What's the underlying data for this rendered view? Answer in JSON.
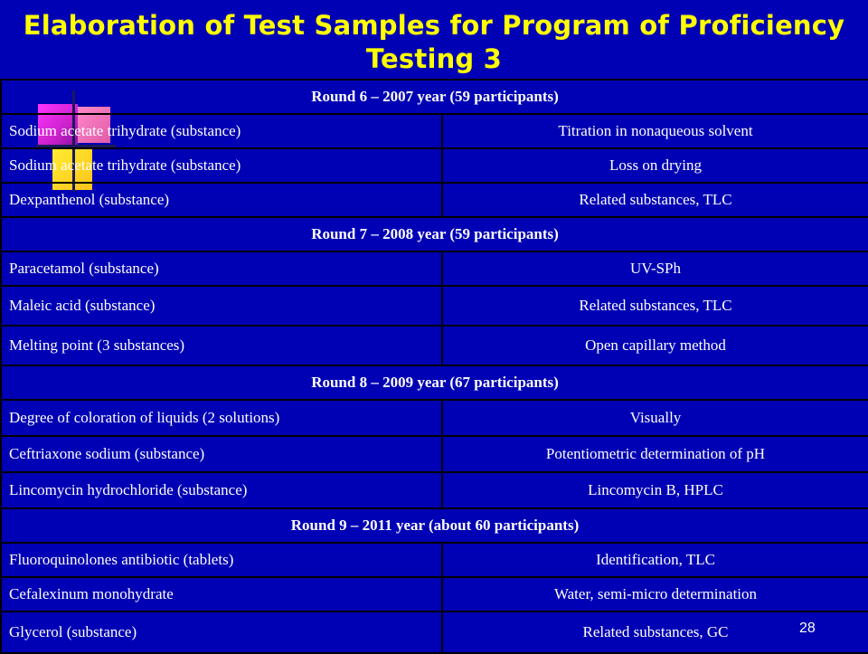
{
  "title": "Elaboration of Test Samples for Program of Proficiency Testing 3",
  "page_number": "28",
  "rows": [
    {
      "type": "round",
      "label": "Round 6 – 2007 year (59 participants)"
    },
    {
      "type": "item",
      "sample": "Sodium acetate trihydrate (substance)",
      "method": "Titration in nonaqueous solvent"
    },
    {
      "type": "item",
      "sample": "Sodium acetate trihydrate (substance)",
      "method": "Loss on drying"
    },
    {
      "type": "item",
      "sample": "Dexpanthenol (substance)",
      "method": "Related substances, TLC"
    },
    {
      "type": "round",
      "label": "Round 7 – 2008 year (59 participants)"
    },
    {
      "type": "item",
      "sample": "Paracetamol (substance)",
      "method": "UV-SPh"
    },
    {
      "type": "item",
      "sample": "Maleic acid (substance)",
      "method": "Related substances, TLC"
    },
    {
      "type": "item",
      "sample": "Melting point (3 substances)",
      "method": "Open capillary method"
    },
    {
      "type": "round",
      "label": "Round 8 – 2009 year (67 participants)"
    },
    {
      "type": "item",
      "sample": "Degree of coloration of liquids (2 solutions)",
      "method": "Visually"
    },
    {
      "type": "item",
      "sample": "Ceftriaxone sodium (substance)",
      "method": "Potentiometric determination of pH"
    },
    {
      "type": "item",
      "sample": "Lincomycin hydrochloride (substance)",
      "method": "Lincomycin B, HPLC"
    },
    {
      "type": "round",
      "label": "Round 9 – 2011 year (about 60 participants)"
    },
    {
      "type": "item",
      "sample": "Fluoroquinolones antibiotic (tablets)",
      "method": "Identification, TLC"
    },
    {
      "type": "item",
      "sample": "Cefalexinum monohydrate",
      "method": "Water, semi-micro determination"
    },
    {
      "type": "item",
      "sample": "Glycerol (substance)",
      "method": "Related substances, GC"
    }
  ]
}
